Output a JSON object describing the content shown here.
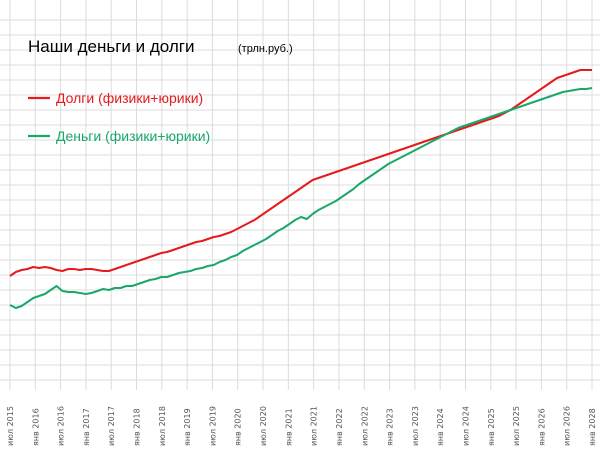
{
  "chart_data": {
    "type": "line",
    "title": "Наши деньги и долги",
    "title_unit": "(трлн.руб.)",
    "legend_position": "top-left",
    "grid": true,
    "x_tick_labels": [
      "июл 2015",
      "янв 2016",
      "июл 2016",
      "янв 2017",
      "июл 2017",
      "янв 2018",
      "июл 2018",
      "янв 2019",
      "июл 2019",
      "янв 2020",
      "июл 2020",
      "янв 2021",
      "июл 2021",
      "янв 2022",
      "июл 2022",
      "янв 2023",
      "июл 2023",
      "янв 2024",
      "июл 2024",
      "янв 2025",
      "июл 2025",
      "янв 2026",
      "июл 2026",
      "янв 2028"
    ],
    "series": [
      {
        "name": "Долги (физики+юрики)",
        "color": "#e41a1c",
        "values": [
          [
            0,
            276
          ],
          [
            0.5,
            272
          ],
          [
            1,
            270
          ],
          [
            1.5,
            269
          ],
          [
            2,
            267
          ],
          [
            2.5,
            268
          ],
          [
            3,
            267
          ],
          [
            3.5,
            268
          ],
          [
            4,
            270
          ],
          [
            4.5,
            271
          ],
          [
            5,
            269
          ],
          [
            5.5,
            269
          ],
          [
            6,
            270
          ],
          [
            6.5,
            269
          ],
          [
            7,
            269
          ],
          [
            7.5,
            270
          ],
          [
            8,
            271
          ],
          [
            8.5,
            271
          ],
          [
            9,
            269
          ],
          [
            9.5,
            267
          ],
          [
            10,
            265
          ],
          [
            10.5,
            263
          ],
          [
            11,
            261
          ],
          [
            11.5,
            259
          ],
          [
            12,
            257
          ],
          [
            12.5,
            255
          ],
          [
            13,
            253
          ],
          [
            13.5,
            252
          ],
          [
            14,
            250
          ],
          [
            14.5,
            248
          ],
          [
            15,
            246
          ],
          [
            15.5,
            244
          ],
          [
            16,
            242
          ],
          [
            16.5,
            241
          ],
          [
            17,
            239
          ],
          [
            17.5,
            237
          ],
          [
            18,
            236
          ],
          [
            18.5,
            234
          ],
          [
            19,
            232
          ],
          [
            19.5,
            229
          ],
          [
            20,
            226
          ],
          [
            20.5,
            223
          ],
          [
            21,
            220
          ],
          [
            21.5,
            216
          ],
          [
            22,
            212
          ],
          [
            22.5,
            208
          ],
          [
            23,
            204
          ],
          [
            23.5,
            200
          ],
          [
            24,
            196
          ],
          [
            24.5,
            192
          ],
          [
            25,
            188
          ],
          [
            25.5,
            184
          ],
          [
            26,
            180
          ],
          [
            26.5,
            178
          ],
          [
            27,
            176
          ],
          [
            27.5,
            174
          ],
          [
            28,
            172
          ],
          [
            28.5,
            170
          ],
          [
            29,
            168
          ],
          [
            29.5,
            166
          ],
          [
            30,
            164
          ],
          [
            30.5,
            162
          ],
          [
            31,
            160
          ],
          [
            31.5,
            158
          ],
          [
            32,
            156
          ],
          [
            32.5,
            154
          ],
          [
            33,
            152
          ],
          [
            33.5,
            150
          ],
          [
            34,
            148
          ],
          [
            34.5,
            146
          ],
          [
            35,
            144
          ],
          [
            35.5,
            142
          ],
          [
            36,
            140
          ],
          [
            36.5,
            138
          ],
          [
            37,
            136
          ],
          [
            37.5,
            134
          ],
          [
            38,
            132
          ],
          [
            38.5,
            130
          ],
          [
            39,
            128
          ],
          [
            39.5,
            126
          ],
          [
            40,
            124
          ],
          [
            40.5,
            122
          ],
          [
            41,
            120
          ],
          [
            41.5,
            118
          ],
          [
            42,
            116
          ],
          [
            42.5,
            113
          ],
          [
            43,
            110
          ],
          [
            43.5,
            106
          ],
          [
            44,
            102
          ],
          [
            44.5,
            98
          ],
          [
            45,
            94
          ],
          [
            45.5,
            90
          ],
          [
            46,
            86
          ],
          [
            46.5,
            82
          ],
          [
            47,
            78
          ],
          [
            47.5,
            76
          ],
          [
            48,
            74
          ],
          [
            48.5,
            72
          ],
          [
            49,
            70
          ],
          [
            49.5,
            70
          ],
          [
            50,
            70
          ]
        ]
      },
      {
        "name": "Деньги (физики+юрики)",
        "color": "#1aa86a",
        "values": [
          [
            0,
            305
          ],
          [
            0.5,
            308
          ],
          [
            1,
            306
          ],
          [
            1.5,
            302
          ],
          [
            2,
            298
          ],
          [
            2.5,
            296
          ],
          [
            3,
            294
          ],
          [
            3.5,
            290
          ],
          [
            4,
            286
          ],
          [
            4.5,
            291
          ],
          [
            5,
            292
          ],
          [
            5.5,
            292
          ],
          [
            6,
            293
          ],
          [
            6.5,
            294
          ],
          [
            7,
            293
          ],
          [
            7.5,
            291
          ],
          [
            8,
            289
          ],
          [
            8.5,
            290
          ],
          [
            9,
            288
          ],
          [
            9.5,
            288
          ],
          [
            10,
            286
          ],
          [
            10.5,
            286
          ],
          [
            11,
            284
          ],
          [
            11.5,
            282
          ],
          [
            12,
            280
          ],
          [
            12.5,
            279
          ],
          [
            13,
            277
          ],
          [
            13.5,
            277
          ],
          [
            14,
            275
          ],
          [
            14.5,
            273
          ],
          [
            15,
            272
          ],
          [
            15.5,
            271
          ],
          [
            16,
            269
          ],
          [
            16.5,
            268
          ],
          [
            17,
            266
          ],
          [
            17.5,
            265
          ],
          [
            18,
            262
          ],
          [
            18.5,
            260
          ],
          [
            19,
            257
          ],
          [
            19.5,
            255
          ],
          [
            20,
            251
          ],
          [
            20.5,
            248
          ],
          [
            21,
            245
          ],
          [
            21.5,
            242
          ],
          [
            22,
            239
          ],
          [
            22.5,
            235
          ],
          [
            23,
            231
          ],
          [
            23.5,
            228
          ],
          [
            24,
            224
          ],
          [
            24.5,
            220
          ],
          [
            25,
            217
          ],
          [
            25.5,
            219
          ],
          [
            26,
            214
          ],
          [
            26.5,
            210
          ],
          [
            27,
            207
          ],
          [
            27.5,
            204
          ],
          [
            28,
            201
          ],
          [
            28.5,
            197
          ],
          [
            29,
            193
          ],
          [
            29.5,
            189
          ],
          [
            30,
            184
          ],
          [
            30.5,
            180
          ],
          [
            31,
            176
          ],
          [
            31.5,
            172
          ],
          [
            32,
            168
          ],
          [
            32.5,
            164
          ],
          [
            33,
            161
          ],
          [
            33.5,
            158
          ],
          [
            34,
            155
          ],
          [
            34.5,
            152
          ],
          [
            35,
            149
          ],
          [
            35.5,
            146
          ],
          [
            36,
            143
          ],
          [
            36.5,
            140
          ],
          [
            37,
            137
          ],
          [
            37.5,
            134
          ],
          [
            38,
            131
          ],
          [
            38.5,
            128
          ],
          [
            39,
            126
          ],
          [
            39.5,
            124
          ],
          [
            40,
            122
          ],
          [
            40.5,
            120
          ],
          [
            41,
            118
          ],
          [
            41.5,
            116
          ],
          [
            42,
            114
          ],
          [
            42.5,
            112
          ],
          [
            43,
            110
          ],
          [
            43.5,
            108
          ],
          [
            44,
            106
          ],
          [
            44.5,
            104
          ],
          [
            45,
            102
          ],
          [
            45.5,
            100
          ],
          [
            46,
            98
          ],
          [
            46.5,
            96
          ],
          [
            47,
            94
          ],
          [
            47.5,
            92
          ],
          [
            48,
            91
          ],
          [
            48.5,
            90
          ],
          [
            49,
            89
          ],
          [
            49.5,
            89
          ],
          [
            50,
            88
          ]
        ]
      }
    ]
  }
}
